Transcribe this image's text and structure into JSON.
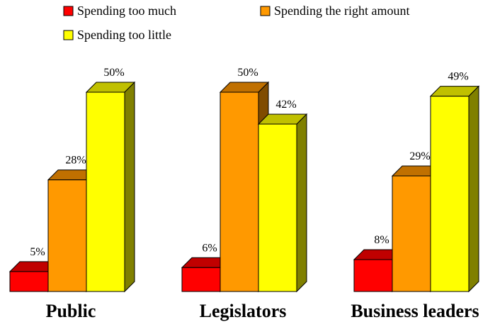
{
  "chart_data": {
    "type": "bar",
    "categories": [
      "Public",
      "Legislators",
      "Business leaders"
    ],
    "series": [
      {
        "name": "Spending too much",
        "values": [
          5,
          6,
          8
        ],
        "color": "#ff0000",
        "top": "#c00000",
        "side": "#800000"
      },
      {
        "name": "Spending the right amount",
        "values": [
          28,
          50,
          29
        ],
        "color": "#ff9900",
        "top": "#c07000",
        "side": "#804c00"
      },
      {
        "name": "Spending too little",
        "values": [
          50,
          42,
          49
        ],
        "color": "#ffff00",
        "top": "#c0c000",
        "side": "#808000"
      }
    ],
    "value_suffix": "%",
    "ylim": [
      0,
      50
    ],
    "three_d": true,
    "grid": false,
    "legend_position": "top"
  }
}
